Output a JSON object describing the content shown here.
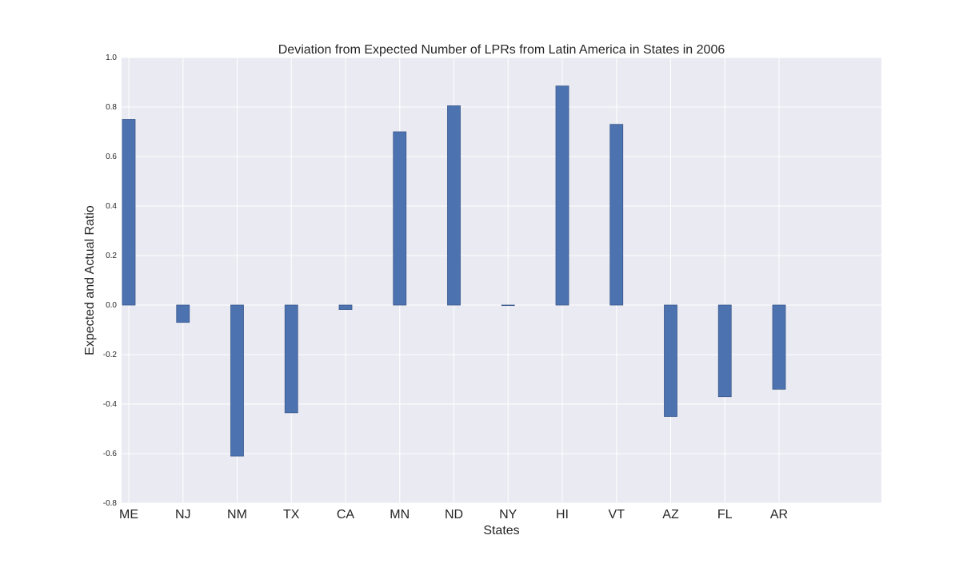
{
  "chart_data": {
    "type": "bar",
    "title": "Deviation from Expected Number of LPRs from Latin America in States in 2006",
    "xlabel": "States",
    "ylabel": "Expected and Actual Ratio",
    "categories": [
      "ME",
      "NJ",
      "NM",
      "TX",
      "CA",
      "MN",
      "ND",
      "NY",
      "HI",
      "VT",
      "AZ",
      "FL",
      "AR"
    ],
    "values": [
      0.75,
      -0.07,
      -0.61,
      -0.435,
      -0.018,
      0.7,
      0.805,
      -0.002,
      0.885,
      0.73,
      -0.45,
      -0.37,
      -0.34
    ],
    "ylim": [
      -0.8,
      1.0
    ],
    "yticks": [
      "-0.8",
      "-0.6",
      "-0.4",
      "-0.2",
      "0.0",
      "0.2",
      "0.4",
      "0.6",
      "0.8",
      "1.0"
    ],
    "grid": true,
    "colors": {
      "bar": "#4c72b0",
      "bar_edge": "#3a5a8c",
      "plot_bg": "#eaeaf2",
      "grid": "#ffffff"
    }
  }
}
